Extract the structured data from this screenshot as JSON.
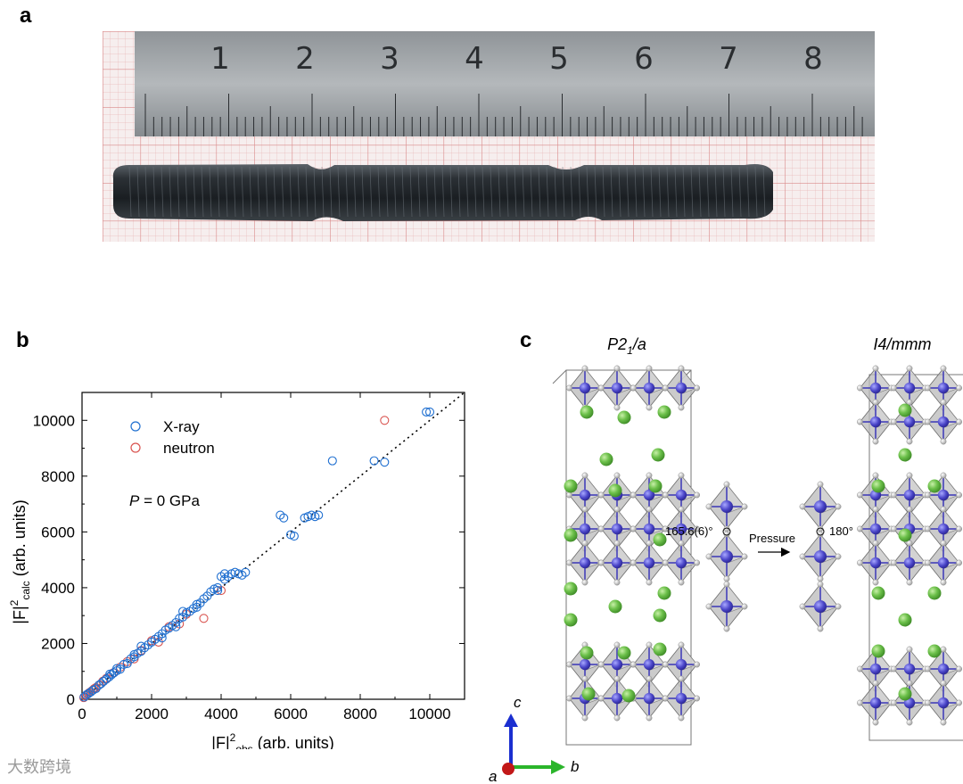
{
  "panels": {
    "a": "a",
    "b": "b",
    "c": "c"
  },
  "ruler": {
    "numbers": [
      "1",
      "2",
      "3",
      "4",
      "5",
      "6",
      "7",
      "8"
    ]
  },
  "watermark": {
    "text": "大数跨境"
  },
  "chart_data": {
    "type": "scatter",
    "title": "",
    "xlabel_main": "|F|",
    "xlabel_sup": "2",
    "xlabel_sub": "obs",
    "xlabel_units": " (arb. units)",
    "ylabel_main": "|F|",
    "ylabel_sup": "2",
    "ylabel_sub": "calc",
    "ylabel_units": " (arb. units)",
    "xlim": [
      0,
      11000
    ],
    "ylim": [
      0,
      11000
    ],
    "xticks": [
      0,
      2000,
      4000,
      6000,
      8000,
      10000
    ],
    "yticks": [
      0,
      2000,
      4000,
      6000,
      8000,
      10000
    ],
    "xtick_labels": [
      "0",
      "2000",
      "4000",
      "6000",
      "8000",
      "10000"
    ],
    "ytick_labels": [
      "0",
      "2000",
      "4000",
      "6000",
      "8000",
      "10000"
    ],
    "annotation_var": "P",
    "annotation_rest": " = 0 GPa",
    "reference_line": "y = x (dotted)",
    "legend_position": "top-left",
    "series": [
      {
        "name": "X-ray",
        "color": "#1f6fd0",
        "points": [
          [
            60,
            80
          ],
          [
            120,
            150
          ],
          [
            180,
            200
          ],
          [
            250,
            260
          ],
          [
            320,
            330
          ],
          [
            400,
            380
          ],
          [
            480,
            500
          ],
          [
            550,
            560
          ],
          [
            620,
            640
          ],
          [
            700,
            720
          ],
          [
            780,
            800
          ],
          [
            850,
            880
          ],
          [
            920,
            950
          ],
          [
            1000,
            1020
          ],
          [
            1100,
            1080
          ],
          [
            1200,
            1250
          ],
          [
            1300,
            1280
          ],
          [
            1400,
            1450
          ],
          [
            1500,
            1520
          ],
          [
            1600,
            1650
          ],
          [
            1700,
            1720
          ],
          [
            1800,
            1850
          ],
          [
            1900,
            1950
          ],
          [
            2000,
            2050
          ],
          [
            2100,
            2150
          ],
          [
            2200,
            2250
          ],
          [
            2300,
            2350
          ],
          [
            2400,
            2480
          ],
          [
            2500,
            2550
          ],
          [
            2600,
            2650
          ],
          [
            2700,
            2750
          ],
          [
            2800,
            2900
          ],
          [
            2900,
            2950
          ],
          [
            3000,
            3100
          ],
          [
            3100,
            3150
          ],
          [
            3200,
            3250
          ],
          [
            3300,
            3400
          ],
          [
            3400,
            3450
          ],
          [
            3500,
            3600
          ],
          [
            3600,
            3700
          ],
          [
            3700,
            3850
          ],
          [
            3800,
            3950
          ],
          [
            3900,
            4000
          ],
          [
            4000,
            4400
          ],
          [
            4100,
            4500
          ],
          [
            4200,
            4400
          ],
          [
            4300,
            4500
          ],
          [
            4400,
            4550
          ],
          [
            4500,
            4500
          ],
          [
            4600,
            4450
          ],
          [
            4700,
            4550
          ],
          [
            5700,
            6600
          ],
          [
            5800,
            6500
          ],
          [
            6000,
            5900
          ],
          [
            6100,
            5850
          ],
          [
            6400,
            6500
          ],
          [
            6500,
            6550
          ],
          [
            6600,
            6600
          ],
          [
            6700,
            6550
          ],
          [
            6800,
            6600
          ],
          [
            7200,
            8550
          ],
          [
            8400,
            8550
          ],
          [
            8700,
            8500
          ],
          [
            9900,
            10300
          ],
          [
            10000,
            10300
          ],
          [
            1500,
            1600
          ],
          [
            2300,
            2200
          ],
          [
            2900,
            3150
          ],
          [
            3300,
            3300
          ],
          [
            1000,
            1100
          ],
          [
            800,
            900
          ],
          [
            1700,
            1900
          ],
          [
            2700,
            2600
          ],
          [
            3900,
            3900
          ],
          [
            4100,
            4300
          ]
        ]
      },
      {
        "name": "neutron",
        "color": "#d9534f",
        "points": [
          [
            50,
            60
          ],
          [
            100,
            120
          ],
          [
            150,
            180
          ],
          [
            200,
            230
          ],
          [
            250,
            270
          ],
          [
            300,
            320
          ],
          [
            350,
            380
          ],
          [
            400,
            420
          ],
          [
            500,
            520
          ],
          [
            600,
            650
          ],
          [
            700,
            750
          ],
          [
            900,
            950
          ],
          [
            1100,
            1150
          ],
          [
            1300,
            1350
          ],
          [
            1500,
            1450
          ],
          [
            1700,
            1750
          ],
          [
            2000,
            2100
          ],
          [
            2200,
            2050
          ],
          [
            2500,
            2600
          ],
          [
            2800,
            2700
          ],
          [
            3000,
            3050
          ],
          [
            3500,
            2900
          ],
          [
            4000,
            3900
          ],
          [
            8700,
            10000
          ]
        ]
      }
    ]
  },
  "structure": {
    "left_title_main": "P2",
    "left_title_sub": "1",
    "left_title_rest": "/a",
    "right_title": "I4/mmm",
    "angle_left": "165.6(6)°",
    "angle_right": "180°",
    "arrow_label": "Pressure",
    "axis_c": "c",
    "axis_a": "a",
    "axis_b": "b"
  }
}
